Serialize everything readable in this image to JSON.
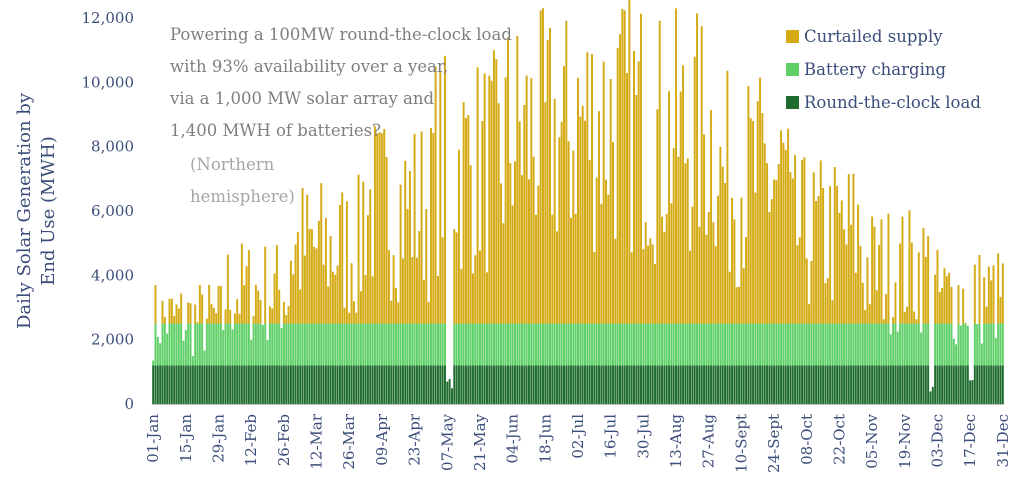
{
  "chart_data": {
    "type": "bar",
    "stacked": true,
    "title": "",
    "ylabel": "Daily Solar Generation by End Use (MWH)",
    "xlabel": "",
    "ylim": [
      0,
      12000
    ],
    "yticks": [
      0,
      2000,
      4000,
      6000,
      8000,
      10000,
      12000
    ],
    "ytick_labels": [
      "0",
      "2,000",
      "4,000",
      "6,000",
      "8,000",
      "10,000",
      "12,000"
    ],
    "grid": false,
    "legend_position": "top-right",
    "num_days": 365,
    "xtick_labels": [
      {
        "day": 1,
        "label": "01-Jan"
      },
      {
        "day": 15,
        "label": "15-Jan"
      },
      {
        "day": 29,
        "label": "29-Jan"
      },
      {
        "day": 43,
        "label": "12-Feb"
      },
      {
        "day": 57,
        "label": "26-Feb"
      },
      {
        "day": 71,
        "label": "12-Mar"
      },
      {
        "day": 85,
        "label": "26-Mar"
      },
      {
        "day": 99,
        "label": "09-Apr"
      },
      {
        "day": 113,
        "label": "23-Apr"
      },
      {
        "day": 127,
        "label": "07-May"
      },
      {
        "day": 141,
        "label": "21-May"
      },
      {
        "day": 155,
        "label": "04-Jun"
      },
      {
        "day": 169,
        "label": "18-Jun"
      },
      {
        "day": 183,
        "label": "02-Jul"
      },
      {
        "day": 197,
        "label": "16-Jul"
      },
      {
        "day": 211,
        "label": "30-Jul"
      },
      {
        "day": 225,
        "label": "13-Aug"
      },
      {
        "day": 239,
        "label": "27-Aug"
      },
      {
        "day": 253,
        "label": "10-Sept"
      },
      {
        "day": 267,
        "label": "24-Sept"
      },
      {
        "day": 281,
        "label": "08-Oct"
      },
      {
        "day": 295,
        "label": "22-Oct"
      },
      {
        "day": 309,
        "label": "05-Nov"
      },
      {
        "day": 323,
        "label": "19-Nov"
      },
      {
        "day": 337,
        "label": "03-Dec"
      },
      {
        "day": 351,
        "label": "17-Dec"
      },
      {
        "day": 365,
        "label": "31-Dec"
      }
    ],
    "series": [
      {
        "name": "Round-the-clock load",
        "color": "#1e6b2e"
      },
      {
        "name": "Battery charging",
        "color": "#5fcf68"
      },
      {
        "name": "Curtailed supply",
        "color": "#d4ab14"
      }
    ],
    "monthly_profile": {
      "months": [
        "Jan",
        "Feb",
        "Mar",
        "Apr",
        "May",
        "Jun",
        "Jul",
        "Aug",
        "Sep",
        "Oct",
        "Nov",
        "Dec"
      ],
      "typical_total": [
        3000,
        4000,
        5500,
        7000,
        8500,
        9500,
        10000,
        9500,
        8000,
        6000,
        4800,
        3800
      ],
      "typical_load": [
        1200,
        1200,
        1200,
        1200,
        1200,
        1200,
        1200,
        1200,
        1200,
        1200,
        1200,
        1200
      ],
      "max_load_plus_battery": 2500
    },
    "outage_days": [
      127,
      128,
      129,
      334,
      335,
      351,
      352
    ],
    "annotation": {
      "lines": [
        "Powering a 100MW round-the-clock load",
        "with 93% availability over a year,",
        "via a 1,000 MW solar array and",
        "1,400 MWH of batteries?"
      ],
      "sub_lines": [
        "(Northern",
        "hemisphere)"
      ]
    }
  }
}
